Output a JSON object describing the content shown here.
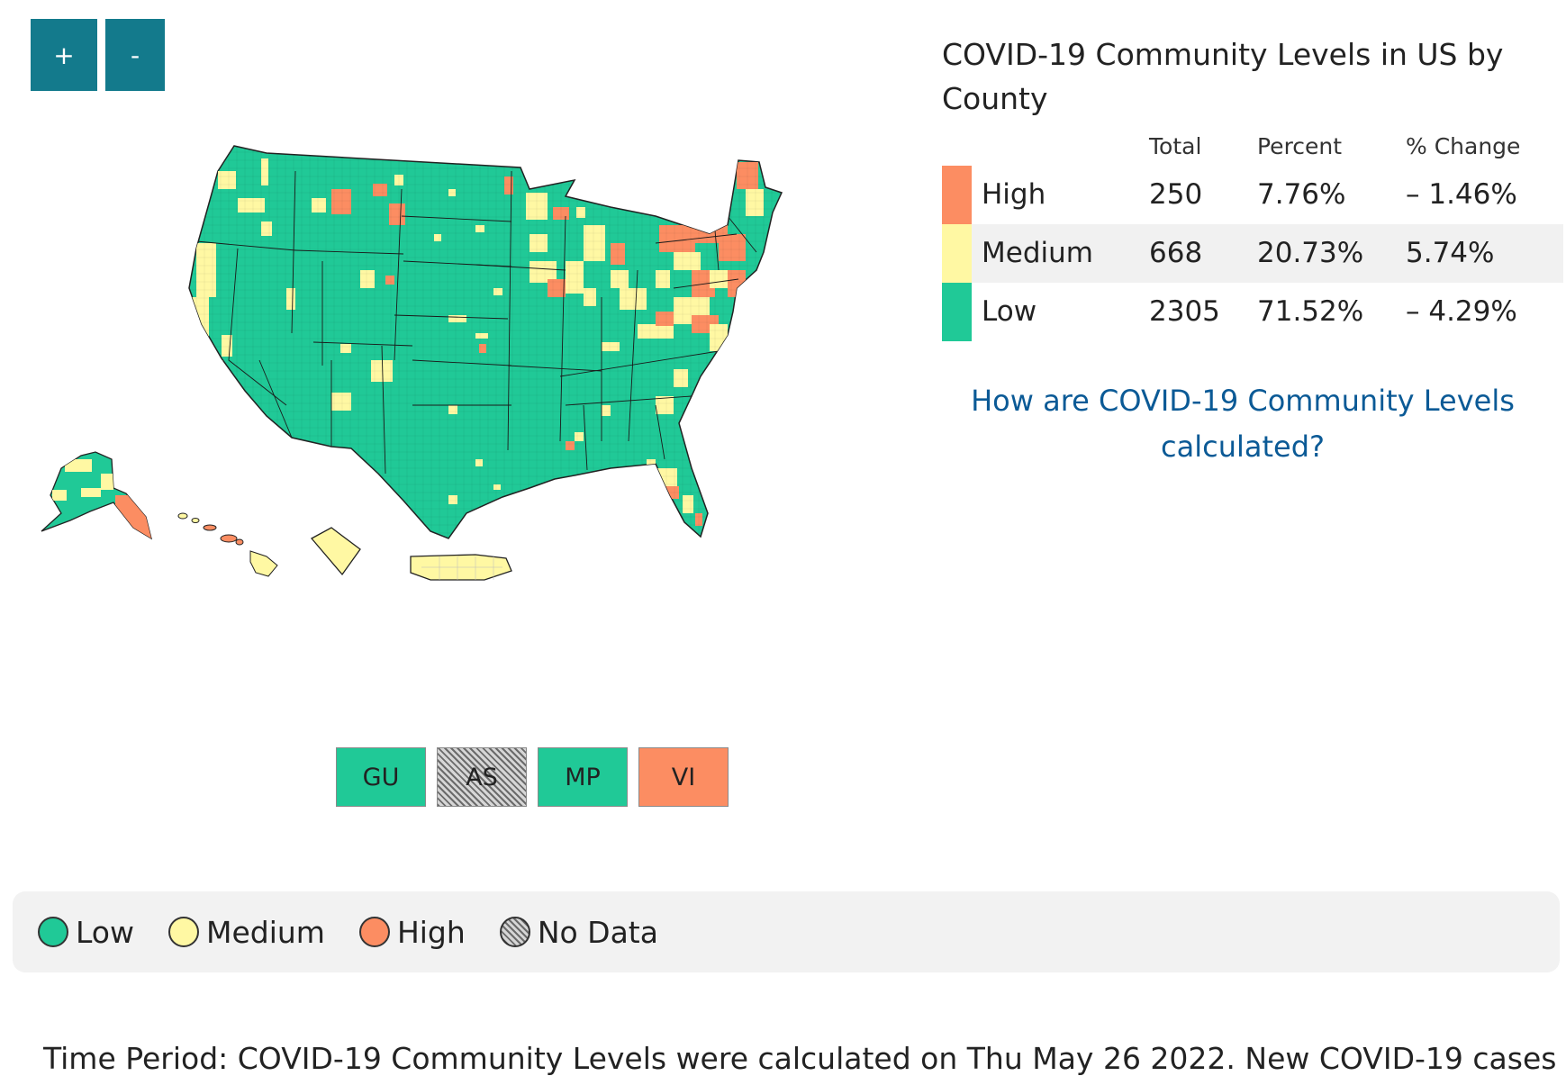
{
  "zoom": {
    "in_label": "+",
    "out_label": "-"
  },
  "colors": {
    "low": "#20c997",
    "medium": "#fff8a3",
    "high": "#fc8d62",
    "border": "#222222"
  },
  "territories": [
    {
      "code": "GU",
      "level": "low"
    },
    {
      "code": "AS",
      "level": "nodata"
    },
    {
      "code": "MP",
      "level": "low"
    },
    {
      "code": "VI",
      "level": "high"
    }
  ],
  "summary": {
    "title": "COVID-19 Community Levels in US by County",
    "headers": {
      "total": "Total",
      "percent": "Percent",
      "change": "% Change"
    },
    "rows": [
      {
        "label": "High",
        "total": "250",
        "percent": "7.76%",
        "change": "– 1.46%",
        "color": "#fc8d62"
      },
      {
        "label": "Medium",
        "total": "668",
        "percent": "20.73%",
        "change": "5.74%",
        "color": "#fff8a3"
      },
      {
        "label": "Low",
        "total": "2305",
        "percent": "71.52%",
        "change": "– 4.29%",
        "color": "#20c997"
      }
    ],
    "link_text": "How are COVID-19 Community Levels calculated?"
  },
  "legend": {
    "items": [
      {
        "label": "Low",
        "color": "#20c997"
      },
      {
        "label": "Medium",
        "color": "#fff8a3"
      },
      {
        "label": "High",
        "color": "#fc8d62"
      },
      {
        "label": "No Data",
        "color": "hatch"
      }
    ]
  },
  "footer": {
    "time_period": "Time Period: COVID-19 Community Levels were calculated on Thu May 26 2022. New COVID-19 cases"
  }
}
